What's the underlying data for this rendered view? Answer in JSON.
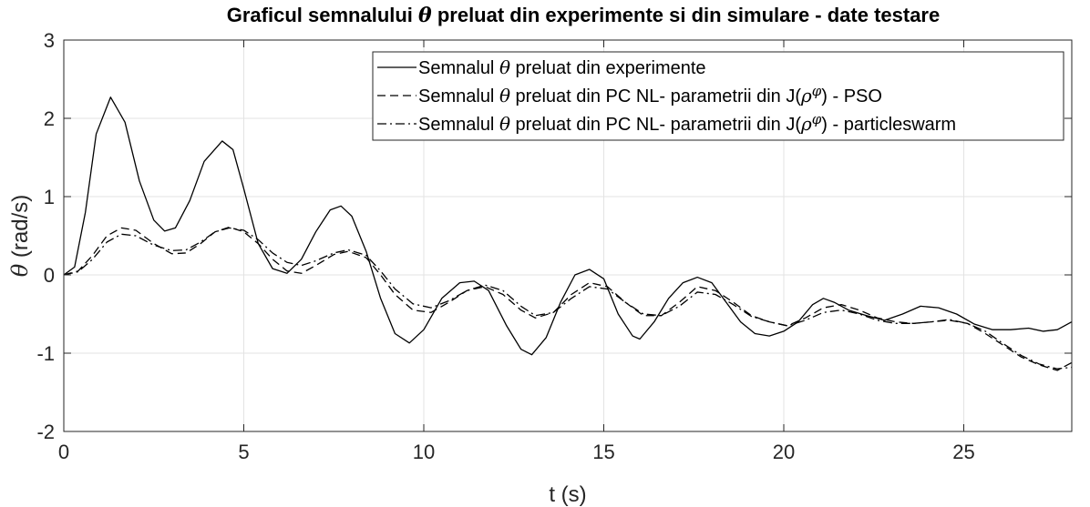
{
  "chart_data": {
    "type": "line",
    "title": {
      "prefix": "Graficul semnalului ",
      "symbol": "θ",
      "suffix": " preluat din experimente si din simulare - date testare"
    },
    "xlabel": "t (s)",
    "ylabel": {
      "symbol": "θ",
      "text": " (rad/s)"
    },
    "xlim": [
      0,
      28
    ],
    "ylim": [
      -2,
      3
    ],
    "xticks": [
      0,
      5,
      10,
      15,
      20,
      25
    ],
    "yticks": [
      -2,
      -1,
      0,
      1,
      2,
      3
    ],
    "grid": true,
    "legend_position": "top-right",
    "series": [
      {
        "name": "Semnalul θ preluat din experimente",
        "legend": {
          "a": "Semnalul ",
          "sym": "θ",
          "b": " preluat din experimente",
          "c": "",
          "sup": "",
          "d": ""
        },
        "line_style": "solid",
        "color": "#000000",
        "points": [
          [
            0,
            0
          ],
          [
            0.3,
            0.1
          ],
          [
            0.6,
            0.8
          ],
          [
            0.9,
            1.8
          ],
          [
            1.3,
            2.27
          ],
          [
            1.7,
            1.95
          ],
          [
            2.1,
            1.2
          ],
          [
            2.5,
            0.7
          ],
          [
            2.8,
            0.56
          ],
          [
            3.1,
            0.6
          ],
          [
            3.5,
            0.95
          ],
          [
            3.9,
            1.45
          ],
          [
            4.4,
            1.71
          ],
          [
            4.7,
            1.6
          ],
          [
            5.0,
            1.1
          ],
          [
            5.4,
            0.4
          ],
          [
            5.8,
            0.08
          ],
          [
            6.2,
            0.02
          ],
          [
            6.6,
            0.2
          ],
          [
            7.0,
            0.55
          ],
          [
            7.4,
            0.83
          ],
          [
            7.7,
            0.88
          ],
          [
            8.0,
            0.75
          ],
          [
            8.4,
            0.3
          ],
          [
            8.8,
            -0.3
          ],
          [
            9.2,
            -0.75
          ],
          [
            9.6,
            -0.87
          ],
          [
            10.0,
            -0.7
          ],
          [
            10.5,
            -0.3
          ],
          [
            11.0,
            -0.1
          ],
          [
            11.4,
            -0.08
          ],
          [
            11.8,
            -0.2
          ],
          [
            12.3,
            -0.65
          ],
          [
            12.7,
            -0.95
          ],
          [
            13.0,
            -1.02
          ],
          [
            13.4,
            -0.8
          ],
          [
            13.8,
            -0.35
          ],
          [
            14.2,
            0.0
          ],
          [
            14.6,
            0.07
          ],
          [
            15.0,
            -0.05
          ],
          [
            15.4,
            -0.5
          ],
          [
            15.8,
            -0.78
          ],
          [
            16.0,
            -0.82
          ],
          [
            16.4,
            -0.6
          ],
          [
            16.8,
            -0.3
          ],
          [
            17.2,
            -0.1
          ],
          [
            17.6,
            -0.03
          ],
          [
            18.0,
            -0.1
          ],
          [
            18.4,
            -0.35
          ],
          [
            18.8,
            -0.6
          ],
          [
            19.2,
            -0.75
          ],
          [
            19.6,
            -0.78
          ],
          [
            20.0,
            -0.72
          ],
          [
            20.4,
            -0.6
          ],
          [
            20.8,
            -0.38
          ],
          [
            21.1,
            -0.3
          ],
          [
            21.4,
            -0.35
          ],
          [
            21.8,
            -0.45
          ],
          [
            22.3,
            -0.52
          ],
          [
            22.8,
            -0.58
          ],
          [
            23.3,
            -0.5
          ],
          [
            23.8,
            -0.4
          ],
          [
            24.3,
            -0.42
          ],
          [
            24.8,
            -0.5
          ],
          [
            25.3,
            -0.63
          ],
          [
            25.8,
            -0.7
          ],
          [
            26.3,
            -0.7
          ],
          [
            26.8,
            -0.68
          ],
          [
            27.2,
            -0.72
          ],
          [
            27.6,
            -0.7
          ],
          [
            28.0,
            -0.6
          ]
        ]
      },
      {
        "name": "Semnalul θ preluat din PC NL- parametrii din J(ρφ) - PSO",
        "legend": {
          "a": "Semnalul ",
          "sym": "θ",
          "b": " preluat din PC NL- parametrii din J(",
          "c": "ρ",
          "sup": "φ",
          "d": ") - PSO"
        },
        "line_style": "dashed",
        "color": "#000000",
        "points": [
          [
            0,
            0
          ],
          [
            0.4,
            0.05
          ],
          [
            0.8,
            0.25
          ],
          [
            1.2,
            0.5
          ],
          [
            1.6,
            0.6
          ],
          [
            2.0,
            0.57
          ],
          [
            2.5,
            0.4
          ],
          [
            3.0,
            0.27
          ],
          [
            3.4,
            0.28
          ],
          [
            3.8,
            0.4
          ],
          [
            4.2,
            0.55
          ],
          [
            4.6,
            0.61
          ],
          [
            5.0,
            0.55
          ],
          [
            5.4,
            0.4
          ],
          [
            5.8,
            0.2
          ],
          [
            6.2,
            0.05
          ],
          [
            6.6,
            0.02
          ],
          [
            7.0,
            0.12
          ],
          [
            7.5,
            0.26
          ],
          [
            7.9,
            0.3
          ],
          [
            8.4,
            0.22
          ],
          [
            8.8,
            0.0
          ],
          [
            9.2,
            -0.25
          ],
          [
            9.7,
            -0.45
          ],
          [
            10.2,
            -0.48
          ],
          [
            10.7,
            -0.35
          ],
          [
            11.2,
            -0.2
          ],
          [
            11.7,
            -0.15
          ],
          [
            12.2,
            -0.25
          ],
          [
            12.7,
            -0.45
          ],
          [
            13.1,
            -0.55
          ],
          [
            13.6,
            -0.48
          ],
          [
            14.1,
            -0.25
          ],
          [
            14.6,
            -0.1
          ],
          [
            15.1,
            -0.15
          ],
          [
            15.6,
            -0.35
          ],
          [
            16.1,
            -0.52
          ],
          [
            16.6,
            -0.52
          ],
          [
            17.1,
            -0.35
          ],
          [
            17.6,
            -0.15
          ],
          [
            18.1,
            -0.2
          ],
          [
            18.6,
            -0.35
          ],
          [
            19.1,
            -0.52
          ],
          [
            19.6,
            -0.6
          ],
          [
            20.1,
            -0.65
          ],
          [
            20.6,
            -0.55
          ],
          [
            21.1,
            -0.42
          ],
          [
            21.6,
            -0.38
          ],
          [
            22.1,
            -0.45
          ],
          [
            22.6,
            -0.55
          ],
          [
            23.1,
            -0.6
          ],
          [
            23.6,
            -0.62
          ],
          [
            24.1,
            -0.6
          ],
          [
            24.6,
            -0.58
          ],
          [
            25.1,
            -0.62
          ],
          [
            25.6,
            -0.75
          ],
          [
            26.1,
            -0.9
          ],
          [
            26.6,
            -1.05
          ],
          [
            27.1,
            -1.15
          ],
          [
            27.6,
            -1.22
          ],
          [
            28.0,
            -1.12
          ]
        ]
      },
      {
        "name": "Semnalul θ preluat din PC NL- parametrii din J(ρφ) - particleswarm",
        "legend": {
          "a": "Semnalul ",
          "sym": "θ",
          "b": " preluat din PC NL- parametrii din J(",
          "c": "ρ",
          "sup": "φ",
          "d": ") - particleswarm"
        },
        "line_style": "dashdot",
        "color": "#000000",
        "points": [
          [
            0,
            0
          ],
          [
            0.4,
            0.04
          ],
          [
            0.8,
            0.2
          ],
          [
            1.2,
            0.42
          ],
          [
            1.6,
            0.52
          ],
          [
            2.0,
            0.5
          ],
          [
            2.5,
            0.38
          ],
          [
            3.0,
            0.31
          ],
          [
            3.4,
            0.32
          ],
          [
            3.8,
            0.42
          ],
          [
            4.2,
            0.55
          ],
          [
            4.6,
            0.6
          ],
          [
            5.0,
            0.57
          ],
          [
            5.4,
            0.45
          ],
          [
            5.8,
            0.28
          ],
          [
            6.2,
            0.16
          ],
          [
            6.6,
            0.12
          ],
          [
            7.0,
            0.18
          ],
          [
            7.5,
            0.28
          ],
          [
            7.9,
            0.32
          ],
          [
            8.4,
            0.25
          ],
          [
            8.8,
            0.05
          ],
          [
            9.2,
            -0.18
          ],
          [
            9.7,
            -0.37
          ],
          [
            10.2,
            -0.42
          ],
          [
            10.7,
            -0.33
          ],
          [
            11.2,
            -0.2
          ],
          [
            11.7,
            -0.13
          ],
          [
            12.2,
            -0.2
          ],
          [
            12.7,
            -0.4
          ],
          [
            13.1,
            -0.52
          ],
          [
            13.6,
            -0.48
          ],
          [
            14.1,
            -0.3
          ],
          [
            14.6,
            -0.15
          ],
          [
            15.1,
            -0.18
          ],
          [
            15.6,
            -0.35
          ],
          [
            16.1,
            -0.5
          ],
          [
            16.6,
            -0.52
          ],
          [
            17.1,
            -0.4
          ],
          [
            17.6,
            -0.22
          ],
          [
            18.1,
            -0.25
          ],
          [
            18.6,
            -0.38
          ],
          [
            19.1,
            -0.53
          ],
          [
            19.6,
            -0.6
          ],
          [
            20.1,
            -0.65
          ],
          [
            20.6,
            -0.58
          ],
          [
            21.1,
            -0.48
          ],
          [
            21.6,
            -0.45
          ],
          [
            22.1,
            -0.5
          ],
          [
            22.6,
            -0.58
          ],
          [
            23.1,
            -0.62
          ],
          [
            23.6,
            -0.62
          ],
          [
            24.1,
            -0.6
          ],
          [
            24.6,
            -0.57
          ],
          [
            25.1,
            -0.62
          ],
          [
            25.6,
            -0.72
          ],
          [
            26.1,
            -0.88
          ],
          [
            26.6,
            -1.03
          ],
          [
            27.1,
            -1.14
          ],
          [
            27.6,
            -1.2
          ],
          [
            28.0,
            -1.18
          ]
        ]
      }
    ]
  }
}
